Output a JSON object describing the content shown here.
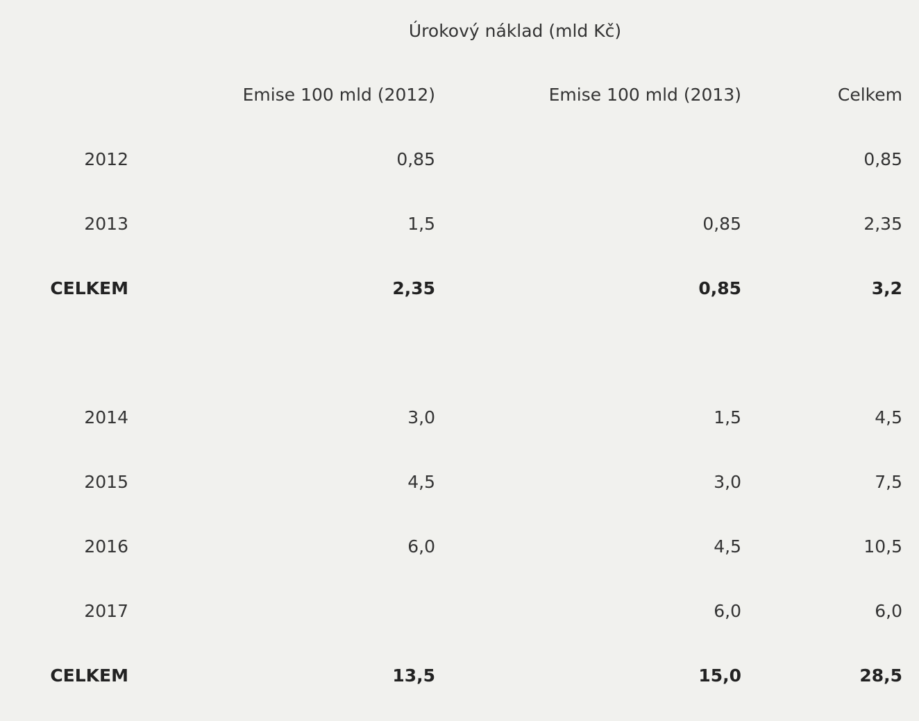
{
  "title": "Úrokový náklad (mld Kč)",
  "table": {
    "headers": [
      "Emise 100 mld (2012)",
      "Emise 100 mld (2013)",
      "Celkem"
    ],
    "groups": [
      {
        "rows": [
          [
            "2012",
            "0,85",
            null,
            "0,85"
          ],
          [
            "2013",
            "1,5",
            "0,85",
            "2,35"
          ]
        ],
        "total": [
          "CELKEM",
          "2,35",
          "0,85",
          "3,2"
        ]
      },
      {
        "rows": [
          [
            "2014",
            "3,0",
            "1,5",
            "4,5"
          ],
          [
            "2015",
            "4,5",
            "3,0",
            "7,5"
          ],
          [
            "2016",
            "6,0",
            "4,5",
            "10,5"
          ],
          [
            "2017",
            null,
            "6,0",
            "6,0"
          ]
        ],
        "total": [
          "CELKEM",
          "13,5",
          "15,0",
          "28,5"
        ]
      }
    ]
  }
}
